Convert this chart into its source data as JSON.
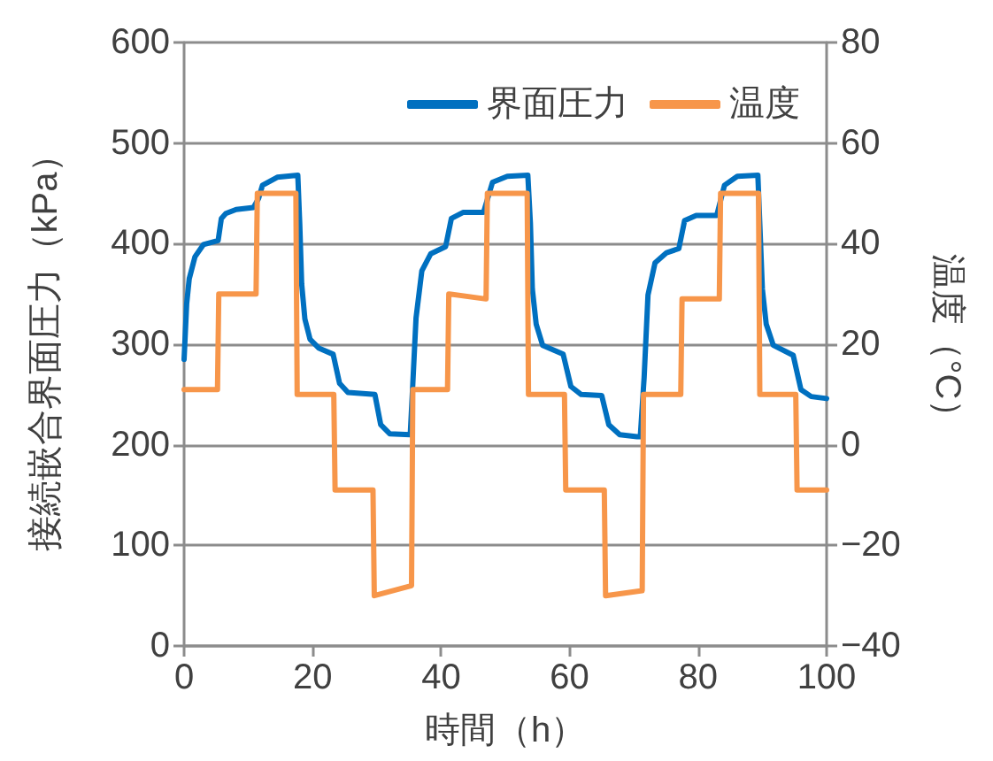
{
  "chart_data": {
    "type": "line",
    "xlabel": "時間（h）",
    "ylabel": "接続嵌合界面圧力（kPa）",
    "y2label": "温度（°C）",
    "xlim": [
      0,
      100
    ],
    "xticks": [
      0,
      20,
      40,
      60,
      80,
      100
    ],
    "ylim": [
      0,
      600
    ],
    "yticks": [
      0,
      100,
      200,
      300,
      400,
      500,
      600
    ],
    "y2lim": [
      -40,
      80
    ],
    "y2ticks": [
      {
        "value": -40,
        "label": "−40"
      },
      {
        "value": -20,
        "label": "−20"
      },
      0,
      20,
      40,
      60,
      80
    ],
    "grid": "y",
    "legend": "top right",
    "marker": "none",
    "line_style": "solid",
    "series": [
      {
        "name": "界面圧力",
        "color": "#0070c0",
        "x": [
          0,
          0.4,
          0.8,
          1.7,
          3,
          5.3,
          5.8,
          6.5,
          8.1,
          10.8,
          11.6,
          12.2,
          14.5,
          17.7,
          18.0,
          18.3,
          18.8,
          19.6,
          21,
          23.2,
          24.2,
          25.5,
          29.7,
          30.6,
          32,
          35.2,
          35.6,
          36.1,
          37,
          38.4,
          40.7,
          41.6,
          43.4,
          46.6,
          48,
          50.3,
          53.5,
          53.9,
          54.2,
          54.8,
          55.8,
          59,
          60.2,
          61.8,
          65,
          66.1,
          67.8,
          70.5,
          71,
          71.6,
          72.2,
          73.3,
          75.1,
          77,
          77.9,
          79.7,
          82.9,
          84.1,
          86.1,
          89.3,
          89.6,
          90,
          90.6,
          91.7,
          94.8,
          96,
          97.6,
          100
        ],
        "values": [
          285,
          340,
          365,
          387,
          399,
          403,
          425,
          430,
          434,
          436,
          445,
          458,
          466,
          468,
          420,
          360,
          325,
          305,
          296,
          290,
          261,
          252,
          250,
          220,
          211,
          210,
          261,
          326,
          373,
          390,
          397,
          425,
          431,
          431,
          461,
          467,
          468,
          420,
          355,
          320,
          299,
          290,
          258,
          250,
          249,
          220,
          210,
          208,
          208,
          267,
          349,
          381,
          391,
          395,
          423,
          428,
          428,
          458,
          467,
          468,
          420,
          355,
          320,
          299,
          289,
          255,
          248,
          246
        ]
      },
      {
        "name": "温度",
        "color": "#f7964a",
        "axis": "y2",
        "x": [
          0,
          5.2,
          5.4,
          11.2,
          11.4,
          17.4,
          17.6,
          23.3,
          23.5,
          29.4,
          29.6,
          35.4,
          35.6,
          41.0,
          41.2,
          47.0,
          47.2,
          53.4,
          53.6,
          59.2,
          59.4,
          65.4,
          65.6,
          71.3,
          71.5,
          77.3,
          77.5,
          83.3,
          83.5,
          89.4,
          89.6,
          95.2,
          95.4,
          100
        ],
        "values": [
          11,
          11,
          30,
          30,
          50,
          50,
          10,
          10,
          -9,
          -9,
          -30,
          -28,
          11,
          11,
          30,
          29,
          50,
          50,
          10,
          10,
          -9,
          -9,
          -30,
          -29,
          10,
          10,
          29,
          29,
          50,
          50,
          10,
          10,
          -9,
          -9
        ]
      }
    ]
  }
}
